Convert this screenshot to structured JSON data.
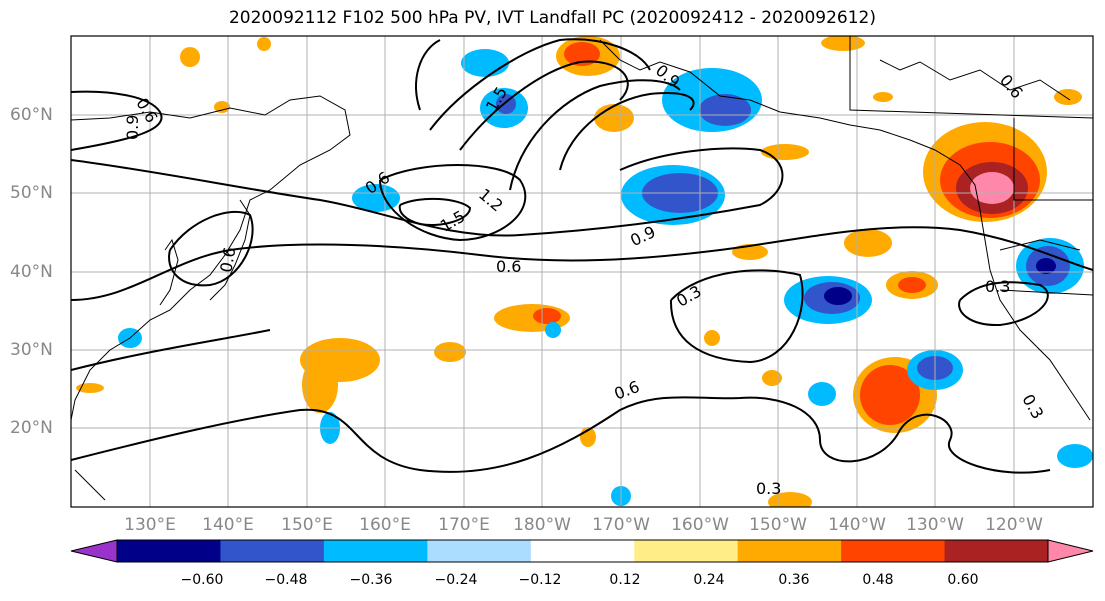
{
  "title": "2020092112 F102 500 hPa PV, IVT Landfall PC (2020092412 - 2020092612)",
  "lat_labels": [
    "60°N",
    "50°N",
    "40°N",
    "30°N",
    "20°N"
  ],
  "lon_labels": [
    "130°E",
    "140°E",
    "150°E",
    "160°E",
    "170°E",
    "180°W",
    "170°W",
    "160°W",
    "150°W",
    "140°W",
    "130°W",
    "120°W"
  ],
  "colorbar": {
    "colors": [
      "#9933cc",
      "#000088",
      "#3355cc",
      "#00bbff",
      "#aaddff",
      "#ffffff",
      "#ffee88",
      "#ffaa00",
      "#ff4400",
      "#aa2222",
      "#ff88aa"
    ],
    "tick_labels": [
      "−0.60",
      "−0.48",
      "−0.36",
      "−0.24",
      "−0.12",
      "0.12",
      "0.24",
      "0.36",
      "0.48",
      "0.60"
    ]
  },
  "contour_labels": [
    "0.6",
    "0.9",
    "0.6",
    "1.5",
    "1.2",
    "0.9",
    "0.6",
    "0.3",
    "0.6",
    "0.3",
    "0.3",
    "0.3",
    "0.6",
    "1.5",
    "0.9",
    "0.6"
  ]
}
